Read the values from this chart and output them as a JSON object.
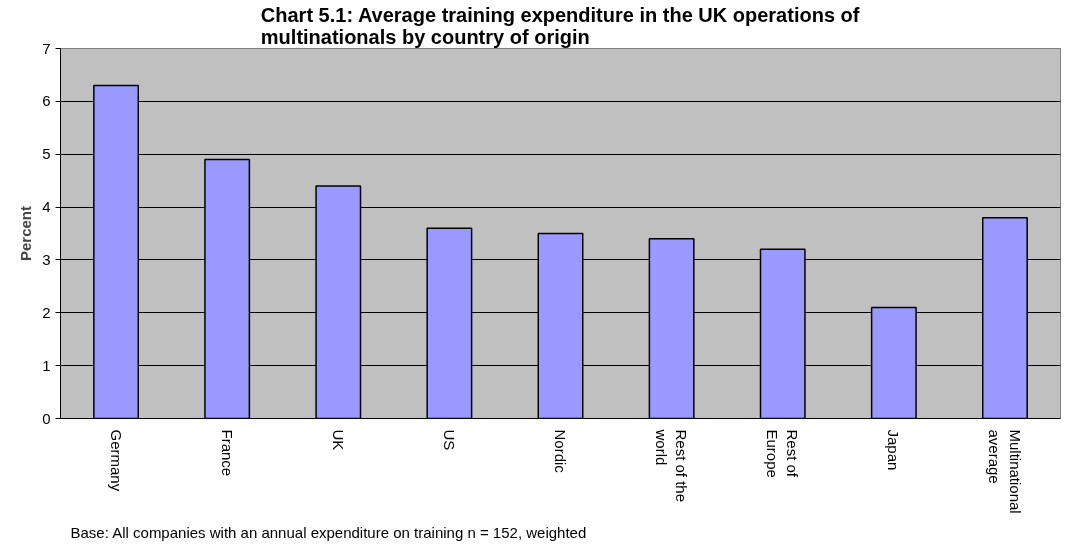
{
  "chart_data": {
    "type": "bar",
    "title": "Chart 5.1: Average training expenditure in the UK operations of multinationals by country of origin",
    "ylabel": "Percent",
    "categories": [
      "Germany",
      "France",
      "UK",
      "US",
      "Nordic",
      "Rest of the world",
      "Rest of Europe",
      "Japan",
      "Multinational average"
    ],
    "values": [
      6.3,
      4.9,
      4.4,
      3.6,
      3.5,
      3.4,
      3.2,
      2.1,
      3.8
    ],
    "color": "#9999ff",
    "ylim": [
      0,
      7
    ],
    "yticks": [
      0,
      1,
      2,
      3,
      4,
      5,
      6,
      7
    ],
    "grid": "y",
    "annotations": [
      "Base: All companies with an annual expenditure on training n = 152, weighted"
    ]
  }
}
